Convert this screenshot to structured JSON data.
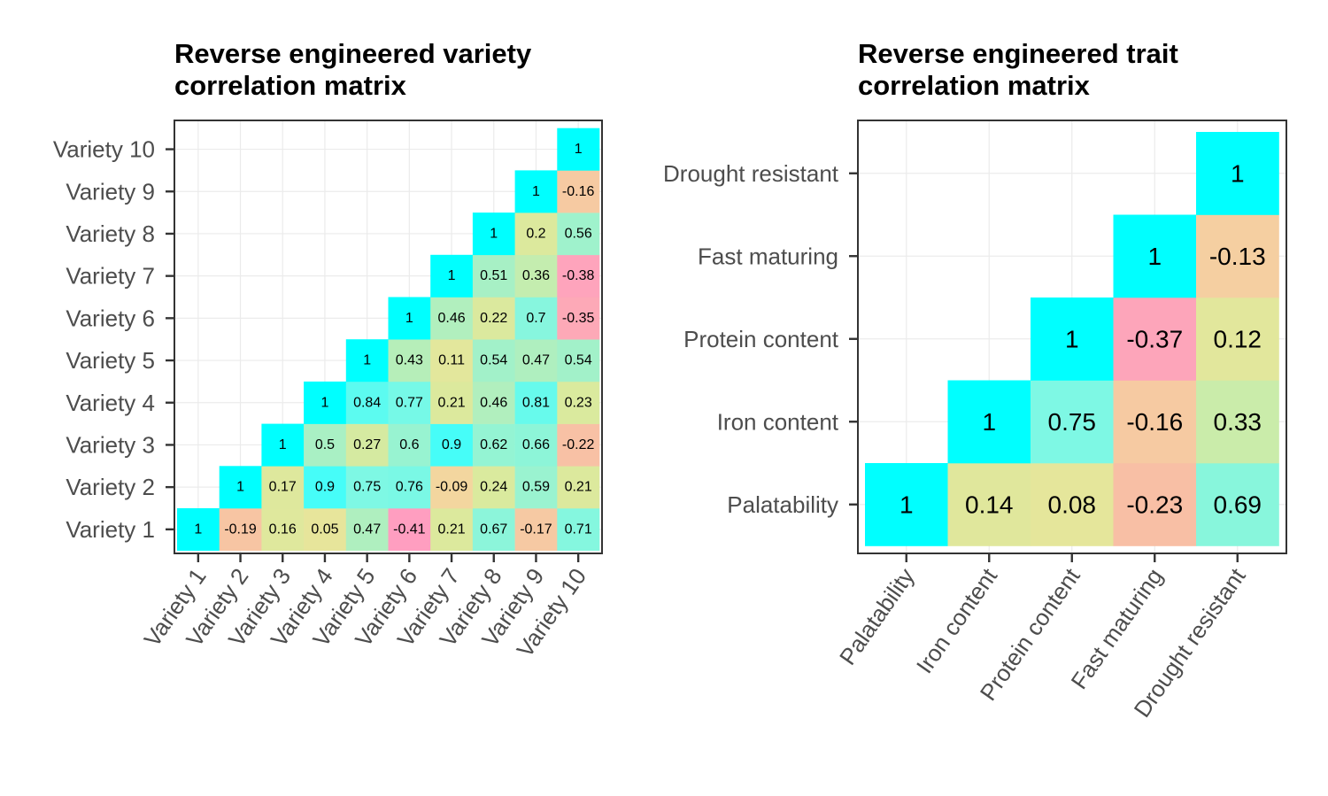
{
  "colors": {
    "one": "#00ffff",
    "scale": [
      {
        "v": -0.41,
        "c": "#ff9ec0"
      },
      {
        "v": -0.23,
        "c": "#f8bfa5"
      },
      {
        "v": -0.1,
        "c": "#f4d4a0"
      },
      {
        "v": 0.0,
        "c": "#eae49a"
      },
      {
        "v": 0.25,
        "c": "#d9ea9e"
      },
      {
        "v": 0.5,
        "c": "#a9f0c4"
      },
      {
        "v": 0.75,
        "c": "#7ef8e4"
      },
      {
        "v": 0.95,
        "c": "#33ffff"
      },
      {
        "v": 1.0,
        "c": "#00ffff"
      }
    ]
  },
  "chart_data": [
    {
      "type": "heatmap",
      "title_lines": [
        "Reverse engineered variety",
        "correlation matrix"
      ],
      "labels": [
        "Variety 1",
        "Variety 2",
        "Variety 3",
        "Variety 4",
        "Variety 5",
        "Variety 6",
        "Variety 7",
        "Variety 8",
        "Variety 9",
        "Variety 10"
      ],
      "matrix": [
        [
          1,
          -0.19,
          0.16,
          0.05,
          0.47,
          -0.41,
          0.21,
          0.67,
          -0.17,
          0.71
        ],
        [
          null,
          1,
          0.17,
          0.9,
          0.75,
          0.76,
          -0.09,
          0.24,
          0.59,
          0.21
        ],
        [
          null,
          null,
          1,
          0.5,
          0.27,
          0.6,
          0.9,
          0.62,
          0.66,
          -0.22
        ],
        [
          null,
          null,
          null,
          1,
          0.84,
          0.77,
          0.21,
          0.46,
          0.81,
          0.23
        ],
        [
          null,
          null,
          null,
          null,
          1,
          0.43,
          0.11,
          0.54,
          0.47,
          0.54
        ],
        [
          null,
          null,
          null,
          null,
          null,
          1,
          0.46,
          0.22,
          0.7,
          -0.35
        ],
        [
          null,
          null,
          null,
          null,
          null,
          null,
          1,
          0.51,
          0.36,
          -0.38
        ],
        [
          null,
          null,
          null,
          null,
          null,
          null,
          null,
          1,
          0.2,
          0.56
        ],
        [
          null,
          null,
          null,
          null,
          null,
          null,
          null,
          null,
          1,
          -0.16
        ],
        [
          null,
          null,
          null,
          null,
          null,
          null,
          null,
          null,
          null,
          1
        ]
      ]
    },
    {
      "type": "heatmap",
      "title_lines": [
        "Reverse engineered trait",
        "correlation matrix"
      ],
      "labels": [
        "Palatability",
        "Iron content",
        "Protein content",
        "Fast maturing",
        "Drought resistant"
      ],
      "matrix": [
        [
          1,
          0.14,
          0.08,
          -0.23,
          0.69
        ],
        [
          null,
          1,
          0.75,
          -0.16,
          0.33
        ],
        [
          null,
          null,
          1,
          -0.37,
          0.12
        ],
        [
          null,
          null,
          null,
          1,
          -0.13
        ],
        [
          null,
          null,
          null,
          null,
          1
        ]
      ]
    }
  ]
}
